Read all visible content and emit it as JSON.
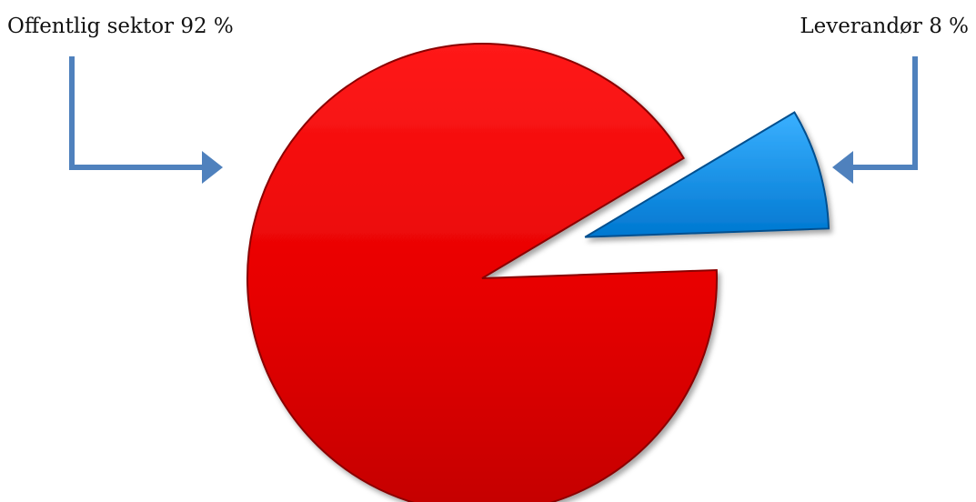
{
  "chart_data": {
    "type": "pie",
    "categories": [
      "Offentlig sektor",
      "Leverandør"
    ],
    "values": [
      92,
      8
    ],
    "labels": [
      "Offentlig sektor 92 %",
      "Leverandør 8 %"
    ],
    "colors": [
      "#e60000",
      "#0a8fe6"
    ],
    "exploded": "Leverandør"
  },
  "colors": {
    "arrow": "#4f81bd",
    "background": "#ffffff"
  }
}
